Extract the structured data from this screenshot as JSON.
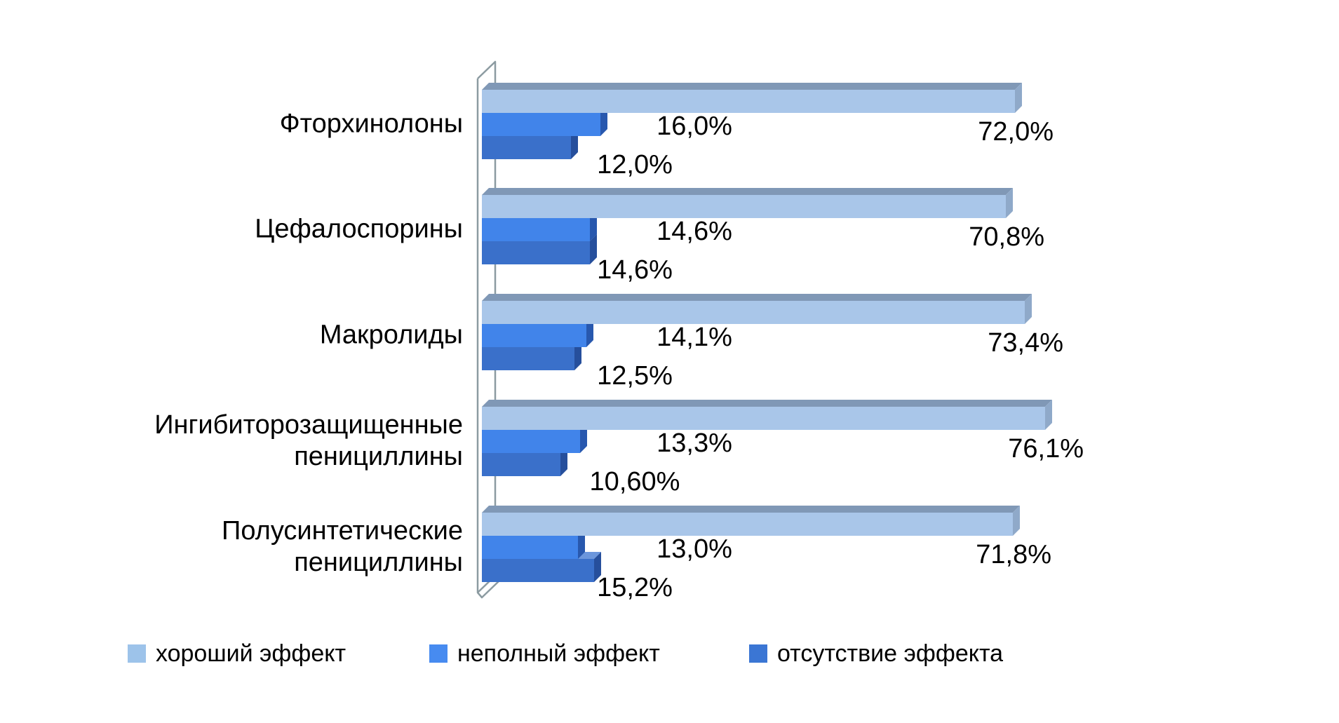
{
  "chart_data": {
    "type": "bar",
    "orientation": "horizontal",
    "style": "3d",
    "title": "",
    "xlabel": "",
    "ylabel": "",
    "xlim": [
      0,
      80
    ],
    "gridlines": false,
    "value_axis_visible": false,
    "legend_position": "bottom",
    "background_color": "#FFFFFF",
    "text_color": "#000000",
    "wall_color": "#8C9BA1",
    "categories": [
      "Фторхинолоны",
      "Цефалоспорины",
      "Макролиды",
      "Ингибиторозащищенные пенициллины",
      "Полусинтетические пенициллины"
    ],
    "series": [
      {
        "name": "хороший эффект",
        "values": [
          72.0,
          70.8,
          73.4,
          76.1,
          71.8
        ],
        "labels": [
          "72,0%",
          "70,8%",
          "73,4%",
          "76,1%",
          "71,8%"
        ],
        "color": "#A9C6E9",
        "color_top": "#8098B6",
        "color_side": "#8FA9C9"
      },
      {
        "name": "неполный эффект",
        "values": [
          16.0,
          14.6,
          14.1,
          13.3,
          13.0
        ],
        "labels": [
          "16,0%",
          "14,6%",
          "14,1%",
          "13,3%",
          "13,0%"
        ],
        "color": "#4184EA",
        "color_top": "#79A8F2",
        "color_side": "#2858AE"
      },
      {
        "name": "отсутствие эффекта",
        "values": [
          12.0,
          14.6,
          12.5,
          10.6,
          15.2
        ],
        "labels": [
          "12,0%",
          "14,6%",
          "12,5%",
          "10,60%",
          "15,2%"
        ],
        "color": "#3A70CA",
        "color_top": "#6B96DC",
        "color_side": "#264F9C"
      }
    ],
    "legend": [
      {
        "label": "хороший эффект",
        "color": "#9DC3EA"
      },
      {
        "label": "неполный эффект",
        "color": "#478BF0"
      },
      {
        "label": "отсутствие эффекта",
        "color": "#3B76D4"
      }
    ]
  }
}
